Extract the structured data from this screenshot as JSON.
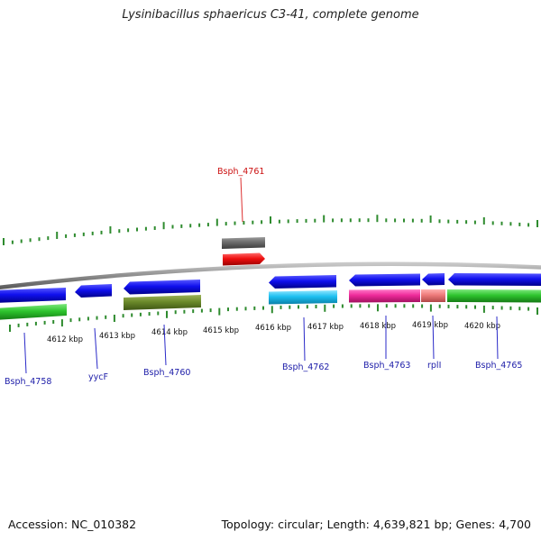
{
  "title": "Lysinibacillus sphaericus C3-41, complete genome",
  "footer": {
    "accession": "Accession: NC_010382",
    "summary": "Topology: circular; Length: 4,639,821 bp; Genes: 4,700"
  },
  "colors": {
    "backbone": "#8c8c8c",
    "tick": "#2e8b2e",
    "label_blue": "#1c1ca8",
    "label_red": "#cc1111"
  },
  "ticks": [
    {
      "label": "4612 kbp"
    },
    {
      "label": "4613 kbp"
    },
    {
      "label": "4614 kbp"
    },
    {
      "label": "4615 kbp"
    },
    {
      "label": "4616 kbp"
    },
    {
      "label": "4617 kbp"
    },
    {
      "label": "4618 kbp"
    },
    {
      "label": "4619 kbp"
    },
    {
      "label": "4620 kbp"
    }
  ],
  "gene_labels": [
    {
      "name": "Bsph_4758"
    },
    {
      "name": "yycF"
    },
    {
      "name": "Bsph_4760"
    },
    {
      "name": "Bsph_4761"
    },
    {
      "name": "Bsph_4762"
    },
    {
      "name": "Bsph_4763"
    },
    {
      "name": "rplI"
    },
    {
      "name": "Bsph_4765"
    }
  ]
}
